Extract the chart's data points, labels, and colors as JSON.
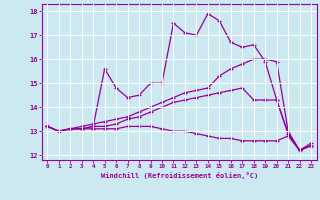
{
  "xlabel": "Windchill (Refroidissement éolien,°C)",
  "bg_color": "#cce8f0",
  "line_color": "#990099",
  "grid_color": "#ffffff",
  "xlim": [
    -0.5,
    23.5
  ],
  "ylim": [
    11.8,
    18.3
  ],
  "yticks": [
    12,
    13,
    14,
    15,
    16,
    17,
    18
  ],
  "xticks": [
    0,
    1,
    2,
    3,
    4,
    5,
    6,
    7,
    8,
    9,
    10,
    11,
    12,
    13,
    14,
    15,
    16,
    17,
    18,
    19,
    20,
    21,
    22,
    23
  ],
  "lines": [
    [
      13.2,
      13.0,
      13.1,
      13.1,
      13.2,
      15.6,
      14.8,
      14.4,
      14.5,
      15.0,
      15.0,
      17.5,
      17.1,
      17.0,
      17.9,
      17.6,
      16.7,
      16.5,
      16.6,
      15.9,
      14.3,
      12.9,
      12.2,
      12.4
    ],
    [
      13.2,
      13.0,
      13.1,
      13.2,
      13.3,
      13.4,
      13.5,
      13.6,
      13.8,
      14.0,
      14.2,
      14.4,
      14.6,
      14.7,
      14.8,
      15.3,
      15.6,
      15.8,
      16.0,
      16.0,
      15.9,
      13.0,
      12.2,
      12.5
    ],
    [
      13.2,
      13.0,
      13.1,
      13.1,
      13.2,
      13.2,
      13.3,
      13.5,
      13.6,
      13.8,
      14.0,
      14.2,
      14.3,
      14.4,
      14.5,
      14.6,
      14.7,
      14.8,
      14.3,
      14.3,
      14.3,
      12.9,
      12.2,
      12.4
    ],
    [
      13.2,
      13.0,
      13.1,
      13.1,
      13.1,
      13.1,
      13.1,
      13.2,
      13.2,
      13.2,
      13.1,
      13.0,
      13.0,
      12.9,
      12.8,
      12.7,
      12.7,
      12.6,
      12.6,
      12.6,
      12.6,
      12.8,
      12.2,
      12.4
    ]
  ]
}
